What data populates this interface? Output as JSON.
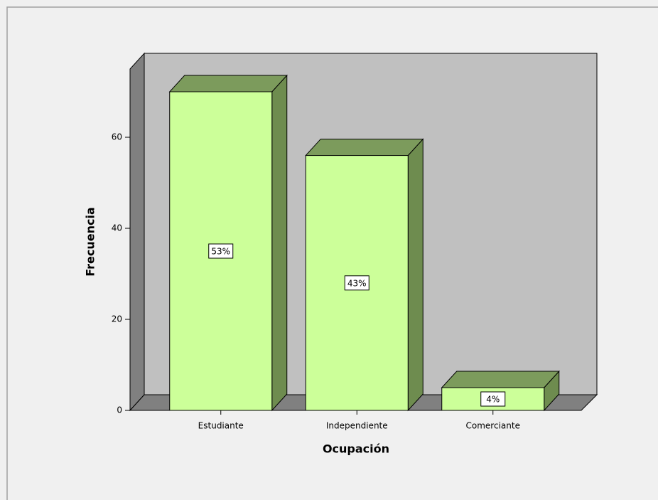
{
  "chart_data": {
    "type": "bar3d",
    "categories": [
      "Estudiante",
      "Independiente",
      "Comerciante"
    ],
    "values": [
      70,
      56,
      5
    ],
    "percent_labels": [
      "53%",
      "43%",
      "4%"
    ],
    "color": "#ccff99",
    "x_label": "Ocupación",
    "y_label": "Frecuencia",
    "ylim": [
      0,
      75
    ],
    "yticks": [
      0,
      20,
      40,
      60
    ]
  }
}
